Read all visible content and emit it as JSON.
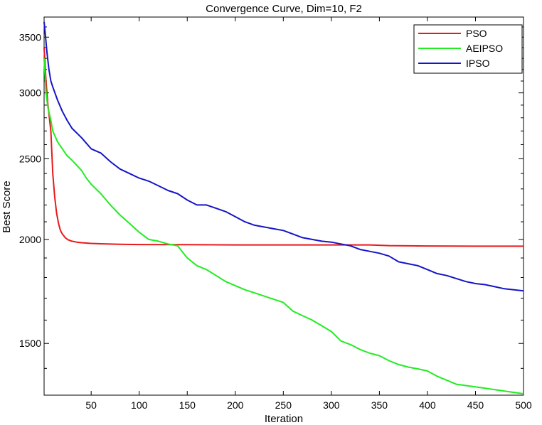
{
  "chart_data": {
    "type": "line",
    "title": "Convergence Curve, Dim=10, F2",
    "xlabel": "Iteration",
    "ylabel": "Best Score",
    "xlim": [
      1,
      500
    ],
    "ylim": [
      1300,
      3700
    ],
    "y_scale": "log",
    "grid": false,
    "legend_position": "top-right",
    "x_ticks": [
      50,
      100,
      150,
      200,
      250,
      300,
      350,
      400,
      450,
      500
    ],
    "x_tick_labels": [
      "50",
      "100",
      "150",
      "200",
      "250",
      "300",
      "350",
      "400",
      "450",
      "500"
    ],
    "y_ticks": [
      1500,
      2000,
      2500,
      3000,
      3500
    ],
    "y_tick_labels": [
      "1500",
      "2000",
      "2500",
      "3000",
      "3500"
    ],
    "series": [
      {
        "name": "PSO",
        "color": "#e8191b",
        "x": [
          1,
          3,
          5,
          8,
          10,
          12,
          14,
          16,
          18,
          20,
          23,
          26,
          30,
          35,
          40,
          50,
          60,
          80,
          100,
          150,
          200,
          250,
          300,
          340,
          360,
          400,
          450,
          500
        ],
        "y": [
          3400,
          3100,
          2900,
          2700,
          2400,
          2250,
          2150,
          2090,
          2050,
          2030,
          2010,
          1998,
          1990,
          1985,
          1982,
          1978,
          1976,
          1973,
          1972,
          1971,
          1970,
          1970,
          1970,
          1970,
          1966,
          1964,
          1963,
          1963
        ]
      },
      {
        "name": "AEIPSO",
        "color": "#22ec22",
        "x": [
          1,
          3,
          5,
          8,
          10,
          15,
          20,
          25,
          30,
          40,
          45,
          50,
          60,
          70,
          80,
          90,
          100,
          110,
          120,
          130,
          140,
          150,
          160,
          170,
          180,
          190,
          200,
          210,
          220,
          230,
          240,
          250,
          260,
          270,
          280,
          290,
          300,
          310,
          320,
          330,
          340,
          350,
          360,
          370,
          380,
          390,
          400,
          410,
          420,
          430,
          440,
          450,
          460,
          470,
          480,
          490,
          500
        ],
        "y": [
          3300,
          3000,
          2880,
          2780,
          2700,
          2620,
          2570,
          2520,
          2490,
          2420,
          2370,
          2330,
          2270,
          2200,
          2140,
          2090,
          2040,
          2000,
          1990,
          1975,
          1965,
          1900,
          1860,
          1840,
          1810,
          1780,
          1760,
          1740,
          1725,
          1710,
          1695,
          1680,
          1640,
          1620,
          1600,
          1575,
          1550,
          1510,
          1495,
          1475,
          1460,
          1450,
          1430,
          1415,
          1405,
          1398,
          1390,
          1370,
          1355,
          1340,
          1335,
          1330,
          1325,
          1320,
          1315,
          1310,
          1305
        ]
      },
      {
        "name": "IPSO",
        "color": "#1515c8",
        "x": [
          1,
          2,
          4,
          6,
          8,
          10,
          15,
          20,
          25,
          30,
          40,
          50,
          60,
          70,
          80,
          90,
          100,
          110,
          120,
          130,
          140,
          150,
          160,
          170,
          180,
          190,
          200,
          210,
          220,
          230,
          240,
          250,
          260,
          270,
          280,
          290,
          300,
          310,
          320,
          330,
          340,
          350,
          360,
          370,
          380,
          390,
          400,
          410,
          420,
          430,
          440,
          450,
          460,
          470,
          480,
          490,
          500
        ],
        "y": [
          3650,
          3550,
          3350,
          3200,
          3100,
          3050,
          2940,
          2850,
          2780,
          2720,
          2650,
          2570,
          2540,
          2480,
          2430,
          2400,
          2370,
          2350,
          2320,
          2290,
          2270,
          2230,
          2200,
          2200,
          2180,
          2160,
          2130,
          2100,
          2080,
          2070,
          2060,
          2050,
          2030,
          2010,
          2000,
          1990,
          1985,
          1975,
          1965,
          1945,
          1935,
          1925,
          1910,
          1880,
          1870,
          1860,
          1840,
          1820,
          1810,
          1795,
          1780,
          1770,
          1765,
          1755,
          1745,
          1740,
          1735
        ]
      }
    ]
  }
}
